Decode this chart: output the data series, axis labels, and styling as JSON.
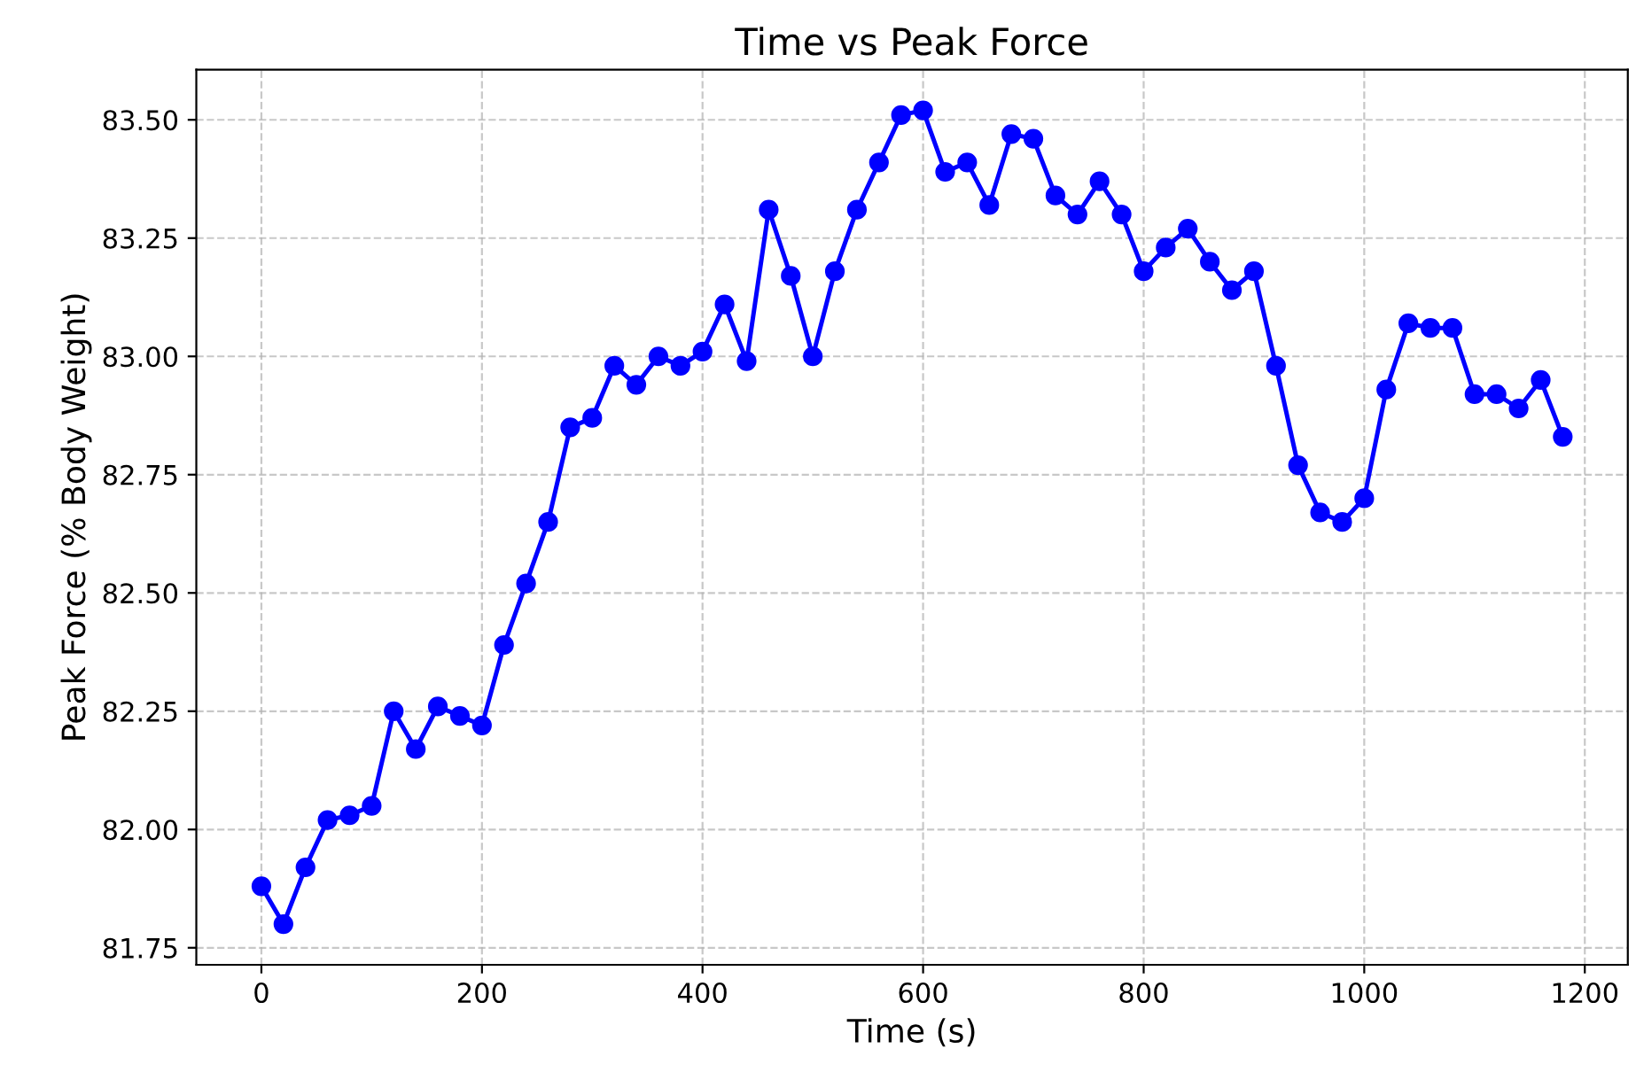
{
  "chart_data": {
    "type": "line",
    "title": "Time vs Peak Force",
    "xlabel": "Time (s)",
    "ylabel": "Peak Force (% Body Weight)",
    "x": [
      0,
      20,
      40,
      60,
      80,
      100,
      120,
      140,
      160,
      180,
      200,
      220,
      240,
      260,
      280,
      300,
      320,
      340,
      360,
      380,
      400,
      420,
      440,
      460,
      480,
      500,
      520,
      540,
      560,
      580,
      600,
      620,
      640,
      660,
      680,
      700,
      720,
      740,
      760,
      780,
      800,
      820,
      840,
      860,
      880,
      900,
      920,
      940,
      960,
      980,
      1000,
      1020,
      1040,
      1060,
      1080,
      1100,
      1120,
      1140,
      1160,
      1180
    ],
    "series": [
      {
        "color": "#0000ff",
        "values": [
          81.88,
          81.8,
          81.92,
          82.02,
          82.03,
          82.05,
          82.25,
          82.17,
          82.26,
          82.24,
          82.22,
          82.39,
          82.52,
          82.65,
          82.85,
          82.87,
          82.98,
          82.94,
          83.0,
          82.98,
          83.01,
          83.11,
          82.99,
          83.31,
          83.17,
          83.0,
          83.18,
          83.31,
          83.41,
          83.51,
          83.52,
          83.39,
          83.41,
          83.32,
          83.47,
          83.46,
          83.34,
          83.3,
          83.37,
          83.3,
          83.18,
          83.23,
          83.27,
          83.2,
          83.14,
          83.18,
          82.98,
          82.77,
          82.67,
          82.65,
          82.7,
          82.93,
          83.07,
          83.06,
          83.06,
          82.92,
          82.92,
          82.89,
          82.95,
          82.83
        ]
      }
    ],
    "xlim": [
      -59,
      1239
    ],
    "ylim": [
      81.714,
      83.606
    ],
    "xticks": [
      0,
      200,
      400,
      600,
      800,
      1000,
      1200
    ],
    "yticks": [
      {
        "value": 81.75,
        "label": "81.75"
      },
      {
        "value": 82.0,
        "label": "82.00"
      },
      {
        "value": 82.25,
        "label": "82.25"
      },
      {
        "value": 82.5,
        "label": "82.50"
      },
      {
        "value": 82.75,
        "label": "82.75"
      },
      {
        "value": 83.0,
        "label": "83.00"
      },
      {
        "value": 83.25,
        "label": "83.25"
      },
      {
        "value": 83.5,
        "label": "83.50"
      }
    ],
    "grid": true,
    "marker": "circle",
    "line_style": "solid"
  }
}
